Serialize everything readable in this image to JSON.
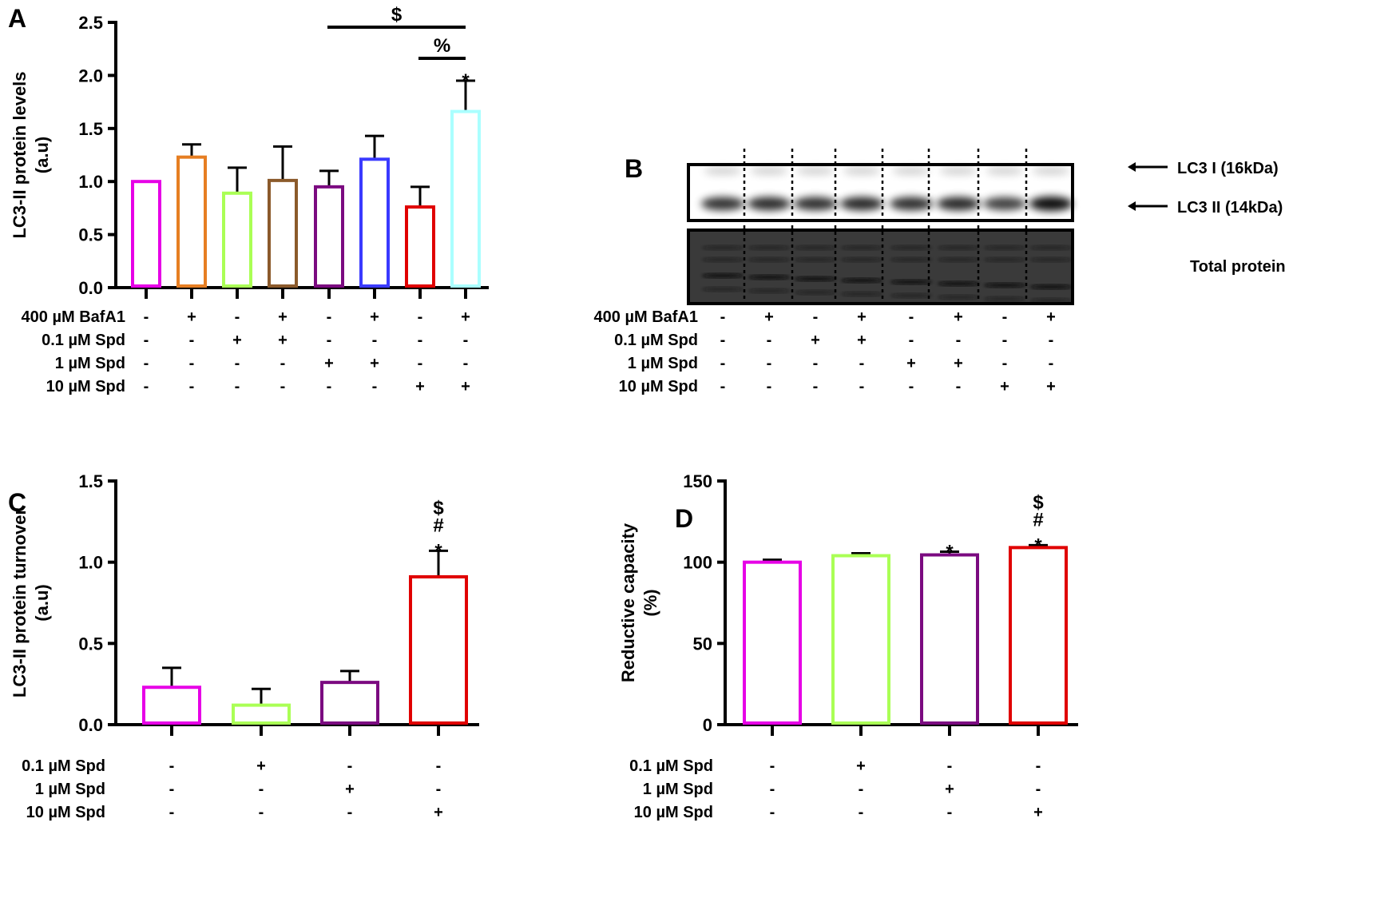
{
  "panels": {
    "a": "A",
    "b": "B",
    "c": "C",
    "d": "D"
  },
  "chart_data": [
    {
      "panel": "A",
      "type": "bar",
      "ylabel": "LC3-II protein levels",
      "ylabel2": "(a.u)",
      "ylim": [
        0,
        2.5
      ],
      "yticks": [
        "0.0",
        "0.5",
        "1.0",
        "1.5",
        "2.0",
        "2.5"
      ],
      "values": [
        1.0,
        1.23,
        0.89,
        1.01,
        0.95,
        1.21,
        0.76,
        1.66
      ],
      "errors": [
        0,
        0.12,
        0.24,
        0.32,
        0.15,
        0.22,
        0.19,
        0.29
      ],
      "colors": [
        "#e600e6",
        "#e67e22",
        "#aaff55",
        "#8b5a2b",
        "#7b0a80",
        "#3a3aff",
        "#e00000",
        "#aaffff"
      ],
      "annotations": [
        {
          "bar": 7,
          "text": "*"
        }
      ],
      "brackets": [
        {
          "from": 4,
          "to": 7,
          "text": "$"
        },
        {
          "from": 6,
          "to": 7,
          "text": "%"
        }
      ],
      "treatments": [
        {
          "label": "400 µM BafA1",
          "signs": [
            "-",
            "+",
            "-",
            "+",
            "-",
            "+",
            "-",
            "+"
          ]
        },
        {
          "label": "0.1 µM Spd",
          "signs": [
            "-",
            "-",
            "+",
            "+",
            "-",
            "-",
            "-",
            "-"
          ]
        },
        {
          "label": "1 µM Spd",
          "signs": [
            "-",
            "-",
            "-",
            "-",
            "+",
            "+",
            "-",
            "-"
          ]
        },
        {
          "label": "10 µM Spd",
          "signs": [
            "-",
            "-",
            "-",
            "-",
            "-",
            "-",
            "+",
            "+"
          ]
        }
      ]
    },
    {
      "panel": "C",
      "type": "bar",
      "ylabel": "LC3-II protein turnover",
      "ylabel2": "(a.u)",
      "ylim": [
        0,
        1.5
      ],
      "yticks": [
        "0.0",
        "0.5",
        "1.0",
        "1.5"
      ],
      "values": [
        0.23,
        0.12,
        0.26,
        0.91
      ],
      "errors": [
        0.12,
        0.1,
        0.07,
        0.16
      ],
      "colors": [
        "#e600e6",
        "#aaff55",
        "#7b0a80",
        "#e00000"
      ],
      "annotations": [
        {
          "bar": 3,
          "text": "*"
        },
        {
          "bar": 3,
          "text": "#"
        },
        {
          "bar": 3,
          "text": "$"
        }
      ],
      "treatments": [
        {
          "label": "0.1 µM Spd",
          "signs": [
            "-",
            "+",
            "-",
            "-"
          ]
        },
        {
          "label": "1 µM Spd",
          "signs": [
            "-",
            "-",
            "+",
            "-"
          ]
        },
        {
          "label": "10 µM Spd",
          "signs": [
            "-",
            "-",
            "-",
            "+"
          ]
        }
      ]
    },
    {
      "panel": "D",
      "type": "bar",
      "ylabel": "Reductive capacity",
      "ylabel2": "(%)",
      "ylim": [
        0,
        150
      ],
      "yticks": [
        "0",
        "50",
        "100",
        "150"
      ],
      "values": [
        100,
        104,
        104.5,
        109
      ],
      "errors": [
        1.5,
        1.5,
        2,
        1.5
      ],
      "colors": [
        "#e600e6",
        "#aaff55",
        "#7b0a80",
        "#e00000"
      ],
      "annotations": [
        {
          "bar": 2,
          "text": "*"
        },
        {
          "bar": 3,
          "text": "*"
        },
        {
          "bar": 3,
          "text": "#"
        },
        {
          "bar": 3,
          "text": "$"
        }
      ],
      "treatments": [
        {
          "label": "0.1 µM Spd",
          "signs": [
            "-",
            "+",
            "-",
            "-"
          ]
        },
        {
          "label": "1 µM Spd",
          "signs": [
            "-",
            "-",
            "+",
            "-"
          ]
        },
        {
          "label": "10 µM Spd",
          "signs": [
            "-",
            "-",
            "-",
            "+"
          ]
        }
      ]
    }
  ],
  "blot": {
    "lc3i_label": "LC3 I (16kDa)",
    "lc3ii_label": "LC3 II (14kDa)",
    "total_label": "Total protein",
    "lc3ii_intensity": [
      0.7,
      0.75,
      0.72,
      0.78,
      0.72,
      0.78,
      0.6,
      1.0
    ],
    "treatments": [
      {
        "label": "400 µM BafA1",
        "signs": [
          "-",
          "+",
          "-",
          "+",
          "-",
          "+",
          "-",
          "+"
        ]
      },
      {
        "label": "0.1 µM Spd",
        "signs": [
          "-",
          "-",
          "+",
          "+",
          "-",
          "-",
          "-",
          "-"
        ]
      },
      {
        "label": "1 µM Spd",
        "signs": [
          "-",
          "-",
          "-",
          "-",
          "+",
          "+",
          "-",
          "-"
        ]
      },
      {
        "label": "10 µM Spd",
        "signs": [
          "-",
          "-",
          "-",
          "-",
          "-",
          "-",
          "+",
          "+"
        ]
      }
    ]
  }
}
